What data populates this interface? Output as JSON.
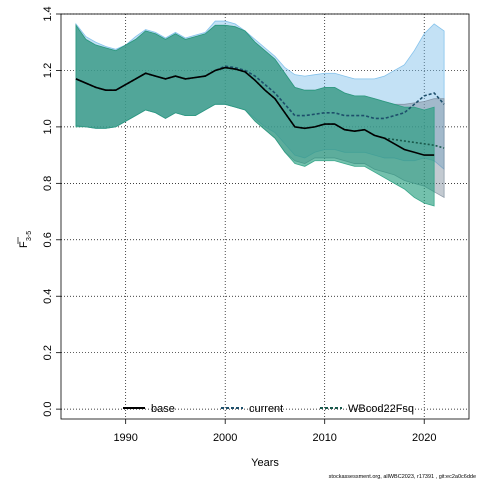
{
  "chart_data": {
    "type": "area",
    "xlabel": "Years",
    "ylabel_main": "F",
    "ylabel_sub": "3-5",
    "xlim": [
      1983.5,
      2024.5
    ],
    "ylim": [
      -0.035,
      1.4
    ],
    "x_ticks": [
      1990,
      2000,
      2010,
      2020
    ],
    "y_ticks": [
      0.0,
      0.2,
      0.4,
      0.6,
      0.8,
      1.0,
      1.2,
      1.4
    ],
    "y_tick_labels": [
      "0.0",
      "0.2",
      "0.4",
      "0.6",
      "0.8",
      "1.0",
      "1.2",
      "1.4"
    ],
    "grid": true,
    "legend_position": "bottom",
    "footnote": "stockassessment.org, allWBC2023, r17391 , git:ec2a0c6dde",
    "series": [
      {
        "name": "base",
        "line_style": "solid",
        "line_color": "#000000",
        "band_color": "#1e9b7a",
        "x": [
          1985,
          1986,
          1987,
          1988,
          1989,
          1990,
          1991,
          1992,
          1993,
          1994,
          1995,
          1996,
          1997,
          1998,
          1999,
          2000,
          2001,
          2002,
          2003,
          2004,
          2005,
          2006,
          2007,
          2008,
          2009,
          2010,
          2011,
          2012,
          2013,
          2014,
          2015,
          2016,
          2017,
          2018,
          2019,
          2020,
          2021
        ],
        "y": [
          1.17,
          1.155,
          1.14,
          1.13,
          1.13,
          1.15,
          1.17,
          1.19,
          1.18,
          1.17,
          1.18,
          1.17,
          1.175,
          1.18,
          1.2,
          1.21,
          1.205,
          1.195,
          1.165,
          1.13,
          1.1,
          1.05,
          1.0,
          0.995,
          1.0,
          1.01,
          1.01,
          0.99,
          0.985,
          0.99,
          0.97,
          0.96,
          0.94,
          0.92,
          0.91,
          0.9,
          0.9
        ],
        "lower": [
          1.0,
          1.0,
          0.995,
          0.995,
          1.0,
          1.02,
          1.04,
          1.06,
          1.05,
          1.03,
          1.05,
          1.04,
          1.04,
          1.06,
          1.08,
          1.08,
          1.07,
          1.06,
          1.02,
          0.99,
          0.96,
          0.91,
          0.87,
          0.86,
          0.88,
          0.88,
          0.88,
          0.87,
          0.86,
          0.86,
          0.84,
          0.82,
          0.8,
          0.78,
          0.75,
          0.73,
          0.72
        ],
        "upper": [
          1.36,
          1.31,
          1.29,
          1.28,
          1.27,
          1.29,
          1.31,
          1.34,
          1.33,
          1.31,
          1.33,
          1.31,
          1.32,
          1.33,
          1.36,
          1.36,
          1.355,
          1.34,
          1.3,
          1.27,
          1.24,
          1.19,
          1.14,
          1.13,
          1.13,
          1.14,
          1.14,
          1.12,
          1.11,
          1.11,
          1.1,
          1.09,
          1.08,
          1.07,
          1.07,
          1.06,
          1.07
        ]
      },
      {
        "name": "current",
        "line_style": "dashed",
        "line_color": "#1d4f6b",
        "band_color": "#6fb8e8",
        "x": [
          1985,
          1986,
          1987,
          1988,
          1989,
          1990,
          1991,
          1992,
          1993,
          1994,
          1995,
          1996,
          1997,
          1998,
          1999,
          2000,
          2001,
          2002,
          2003,
          2004,
          2005,
          2006,
          2007,
          2008,
          2009,
          2010,
          2011,
          2012,
          2013,
          2014,
          2015,
          2016,
          2017,
          2018,
          2019,
          2020,
          2021,
          2022
        ],
        "y": [
          1.17,
          1.155,
          1.14,
          1.13,
          1.13,
          1.15,
          1.17,
          1.19,
          1.18,
          1.17,
          1.18,
          1.17,
          1.175,
          1.18,
          1.2,
          1.215,
          1.21,
          1.2,
          1.18,
          1.15,
          1.12,
          1.08,
          1.04,
          1.04,
          1.045,
          1.05,
          1.05,
          1.04,
          1.04,
          1.04,
          1.03,
          1.03,
          1.04,
          1.05,
          1.08,
          1.11,
          1.12,
          1.08
        ],
        "lower": [
          1.005,
          1.0,
          0.995,
          0.995,
          1.0,
          1.02,
          1.04,
          1.06,
          1.05,
          1.03,
          1.05,
          1.04,
          1.04,
          1.06,
          1.08,
          1.08,
          1.07,
          1.06,
          1.03,
          1.0,
          0.98,
          0.94,
          0.9,
          0.89,
          0.91,
          0.92,
          0.92,
          0.91,
          0.91,
          0.91,
          0.9,
          0.89,
          0.89,
          0.88,
          0.88,
          0.89,
          0.88,
          0.85
        ],
        "upper": [
          1.365,
          1.32,
          1.3,
          1.285,
          1.275,
          1.29,
          1.32,
          1.345,
          1.335,
          1.315,
          1.335,
          1.315,
          1.325,
          1.335,
          1.375,
          1.375,
          1.365,
          1.34,
          1.31,
          1.28,
          1.25,
          1.21,
          1.185,
          1.18,
          1.185,
          1.19,
          1.19,
          1.18,
          1.17,
          1.17,
          1.17,
          1.18,
          1.2,
          1.22,
          1.27,
          1.33,
          1.365,
          1.34
        ]
      },
      {
        "name": "WBcod22Fsq",
        "line_style": "dashed",
        "line_color": "#19594c",
        "band_color": "#7a8a9a",
        "x": [
          1985,
          1986,
          1987,
          1988,
          1989,
          1990,
          1991,
          1992,
          1993,
          1994,
          1995,
          1996,
          1997,
          1998,
          1999,
          2000,
          2001,
          2002,
          2003,
          2004,
          2005,
          2006,
          2007,
          2008,
          2009,
          2010,
          2011,
          2012,
          2013,
          2014,
          2015,
          2016,
          2017,
          2018,
          2019,
          2020,
          2021,
          2022
        ],
        "y": [
          1.17,
          1.155,
          1.14,
          1.13,
          1.13,
          1.15,
          1.17,
          1.19,
          1.18,
          1.17,
          1.18,
          1.17,
          1.175,
          1.18,
          1.2,
          1.21,
          1.205,
          1.195,
          1.165,
          1.13,
          1.1,
          1.05,
          1.0,
          0.995,
          1.0,
          1.01,
          1.01,
          0.99,
          0.985,
          0.99,
          0.97,
          0.96,
          0.955,
          0.95,
          0.945,
          0.94,
          0.935,
          0.925
        ],
        "lower": [
          1.005,
          1.0,
          0.995,
          0.995,
          1.0,
          1.02,
          1.04,
          1.06,
          1.05,
          1.03,
          1.05,
          1.04,
          1.04,
          1.06,
          1.08,
          1.08,
          1.07,
          1.06,
          1.02,
          0.99,
          0.96,
          0.91,
          0.88,
          0.87,
          0.89,
          0.89,
          0.89,
          0.88,
          0.87,
          0.87,
          0.85,
          0.84,
          0.83,
          0.81,
          0.8,
          0.79,
          0.77,
          0.75
        ],
        "upper": [
          1.36,
          1.31,
          1.29,
          1.28,
          1.27,
          1.29,
          1.31,
          1.34,
          1.33,
          1.31,
          1.33,
          1.31,
          1.32,
          1.33,
          1.36,
          1.36,
          1.355,
          1.34,
          1.3,
          1.27,
          1.24,
          1.19,
          1.14,
          1.13,
          1.13,
          1.14,
          1.14,
          1.12,
          1.11,
          1.11,
          1.1,
          1.09,
          1.08,
          1.08,
          1.085,
          1.09,
          1.1,
          1.1
        ]
      }
    ]
  }
}
